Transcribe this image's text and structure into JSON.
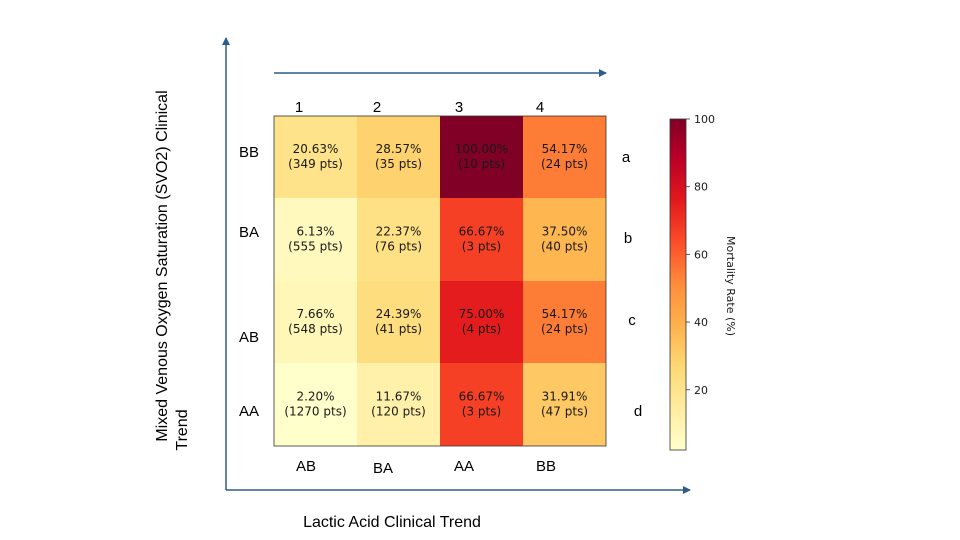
{
  "chart_data": {
    "type": "heatmap",
    "xlabel": "Lactic Acid Clinical Trend",
    "ylabel_line1": "Mixed  Venous Oxygen Saturation (SVO2) Clinical",
    "ylabel_line2": "Trend",
    "column_numbers": [
      "1",
      "2",
      "3",
      "4"
    ],
    "column_labels": [
      "AB",
      "BA",
      "AA",
      "BB"
    ],
    "row_labels": [
      "BB",
      "BA",
      "AB",
      "AA"
    ],
    "row_letters": [
      "a",
      "b",
      "c",
      "d"
    ],
    "values": [
      [
        20.63,
        28.57,
        100.0,
        54.17
      ],
      [
        6.13,
        22.37,
        66.67,
        37.5
      ],
      [
        7.66,
        24.39,
        75.0,
        54.17
      ],
      [
        2.2,
        11.67,
        66.67,
        31.91
      ]
    ],
    "cell_value_labels": [
      [
        "20.63%",
        "28.57%",
        "100.00%",
        "54.17%"
      ],
      [
        "6.13%",
        "22.37%",
        "66.67%",
        "37.50%"
      ],
      [
        "7.66%",
        "24.39%",
        "75.00%",
        "54.17%"
      ],
      [
        "2.20%",
        "11.67%",
        "66.67%",
        "31.91%"
      ]
    ],
    "cell_count_labels": [
      [
        "(349 pts)",
        "(35 pts)",
        "(10 pts)",
        "(24 pts)"
      ],
      [
        "(555 pts)",
        "(76 pts)",
        "(3 pts)",
        "(40 pts)"
      ],
      [
        "(548 pts)",
        "(41 pts)",
        "(4 pts)",
        "(24 pts)"
      ],
      [
        "(1270 pts)",
        "(120 pts)",
        "(3 pts)",
        "(47 pts)"
      ]
    ],
    "colorbar": {
      "label": "Mortality Rate (%)",
      "range": [
        2.2,
        100
      ],
      "ticks": [
        "20",
        "40",
        "60",
        "80",
        "100"
      ],
      "tick_values": [
        20,
        40,
        60,
        80,
        100
      ],
      "colormap": "YlOrRd"
    }
  },
  "colors": {
    "axis_arrow": "#2e5d8a",
    "frame": "#333333"
  }
}
